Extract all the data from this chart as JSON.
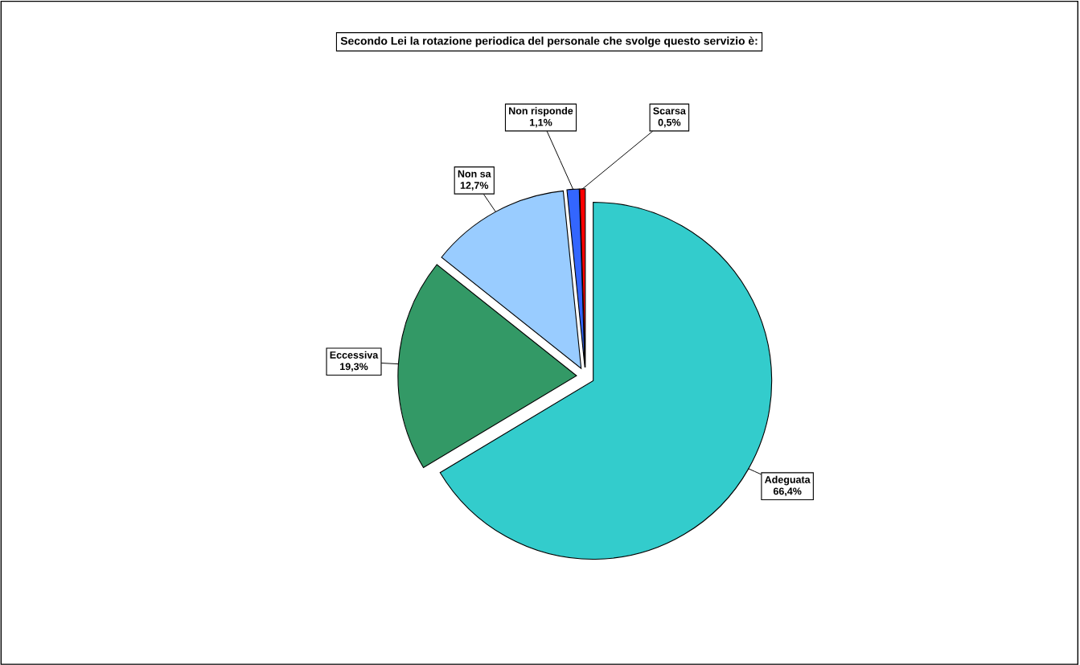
{
  "chart_data": {
    "type": "pie",
    "title": "Secondo Lei la rotazione periodica del personale che svolge questo servizio è:",
    "categories": [
      "Adeguata",
      "Eccessiva",
      "Non sa",
      "Non risponde",
      "Scarsa"
    ],
    "values": [
      66.4,
      19.3,
      12.7,
      1.1,
      0.5
    ],
    "colors": [
      "#33cccc",
      "#339966",
      "#99ccff",
      "#3366ff",
      "#ff0000"
    ],
    "value_labels": [
      "66,4%",
      "19,3%",
      "12,7%",
      "1,1%",
      "0,5%"
    ],
    "legend": false
  }
}
